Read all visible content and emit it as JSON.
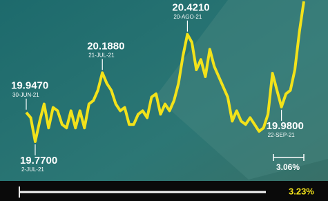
{
  "chart_data": {
    "type": "line",
    "color": "#f2e21a",
    "values": [
      19.947,
      19.915,
      19.77,
      19.894,
      19.998,
      19.853,
      19.977,
      19.957,
      19.874,
      19.853,
      19.957,
      19.853,
      19.957,
      19.853,
      19.998,
      20.019,
      20.081,
      20.188,
      20.123,
      20.081,
      19.998,
      19.957,
      19.977,
      19.874,
      19.874,
      19.936,
      19.957,
      19.915,
      20.04,
      20.06,
      19.936,
      19.998,
      19.957,
      20.019,
      20.123,
      20.289,
      20.421,
      20.372,
      20.206,
      20.268,
      20.164,
      20.33,
      20.226,
      20.164,
      20.102,
      20.04,
      19.894,
      19.957,
      19.894,
      19.874,
      19.915,
      19.874,
      19.832,
      19.853,
      19.936,
      20.185,
      20.081,
      19.98,
      20.06,
      20.081,
      20.206,
      20.434,
      20.621
    ],
    "annotations": [
      {
        "value": 19.947,
        "value_label": "19.9470",
        "date": "30-JUN-21",
        "side": "above"
      },
      {
        "value": 19.77,
        "value_label": "19.7700",
        "date": "2-JUL-21",
        "side": "below"
      },
      {
        "value": 20.188,
        "value_label": "20.1880",
        "date": "21-JUL-21",
        "side": "above"
      },
      {
        "value": 20.421,
        "value_label": "20.4210",
        "date": "20-AGO-21",
        "side": "above"
      },
      {
        "value": 19.98,
        "value_label": "19.9800",
        "date": "22-SEP-21",
        "side": "below"
      }
    ],
    "change_labels": [
      "3.06%",
      "3.23%"
    ]
  }
}
